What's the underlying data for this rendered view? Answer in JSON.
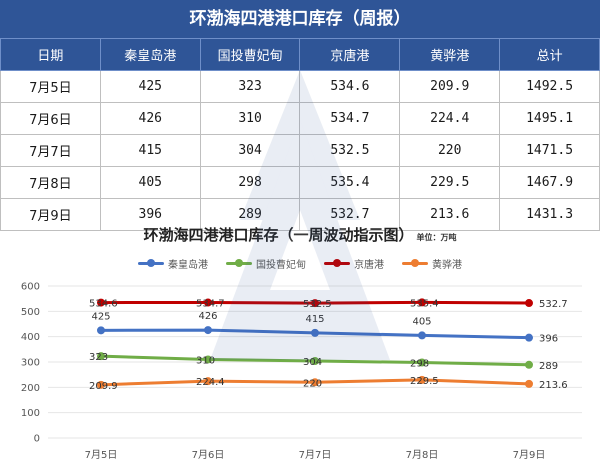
{
  "table": {
    "title": "环渤海四港港口库存（周报）",
    "headers": [
      "日期",
      "秦皇岛港",
      "国投曹妃甸",
      "京唐港",
      "黄骅港",
      "总计"
    ],
    "rows": [
      [
        "7月5日",
        "425",
        "323",
        "534.6",
        "209.9",
        "1492.5"
      ],
      [
        "7月6日",
        "426",
        "310",
        "534.7",
        "224.4",
        "1495.1"
      ],
      [
        "7月7日",
        "415",
        "304",
        "532.5",
        "220",
        "1471.5"
      ],
      [
        "7月8日",
        "405",
        "298",
        "535.4",
        "229.5",
        "1467.9"
      ],
      [
        "7月9日",
        "396",
        "289",
        "532.7",
        "213.6",
        "1431.3"
      ]
    ]
  },
  "chart": {
    "title": "环渤海四港港口库存（一周波动指示图）",
    "unit": "单位：万吨"
  },
  "chart_data": {
    "type": "line",
    "title": "环渤海四港港口库存（一周波动指示图）",
    "x": [
      "7月5日",
      "7月6日",
      "7月7日",
      "7月8日",
      "7月9日"
    ],
    "ylim": [
      0,
      600
    ],
    "yticks": [
      0,
      100,
      200,
      300,
      400,
      500,
      600
    ],
    "grid": true,
    "legend": "top",
    "series": [
      {
        "name": "秦皇岛港",
        "color": "#4472c4",
        "values": [
          425,
          426,
          415,
          405,
          396
        ],
        "labels": [
          "425",
          "426",
          "415",
          "405",
          "396"
        ]
      },
      {
        "name": "国投曹妃甸",
        "color": "#70ad47",
        "values": [
          323,
          310,
          304,
          298,
          289
        ],
        "labels": [
          "323",
          "310",
          "304",
          "298",
          "289"
        ]
      },
      {
        "name": "京唐港",
        "color": "#c00000",
        "values": [
          534.6,
          534.7,
          532.5,
          535.4,
          532.7
        ],
        "labels": [
          "534.6",
          "534.7",
          "532.5",
          "535.4",
          "532.7"
        ]
      },
      {
        "name": "黄骅港",
        "color": "#ed7d31",
        "values": [
          209.9,
          224.4,
          220,
          229.5,
          213.6
        ],
        "labels": [
          "209.9",
          "224.4",
          "220",
          "229.5",
          "213.6"
        ]
      }
    ]
  }
}
